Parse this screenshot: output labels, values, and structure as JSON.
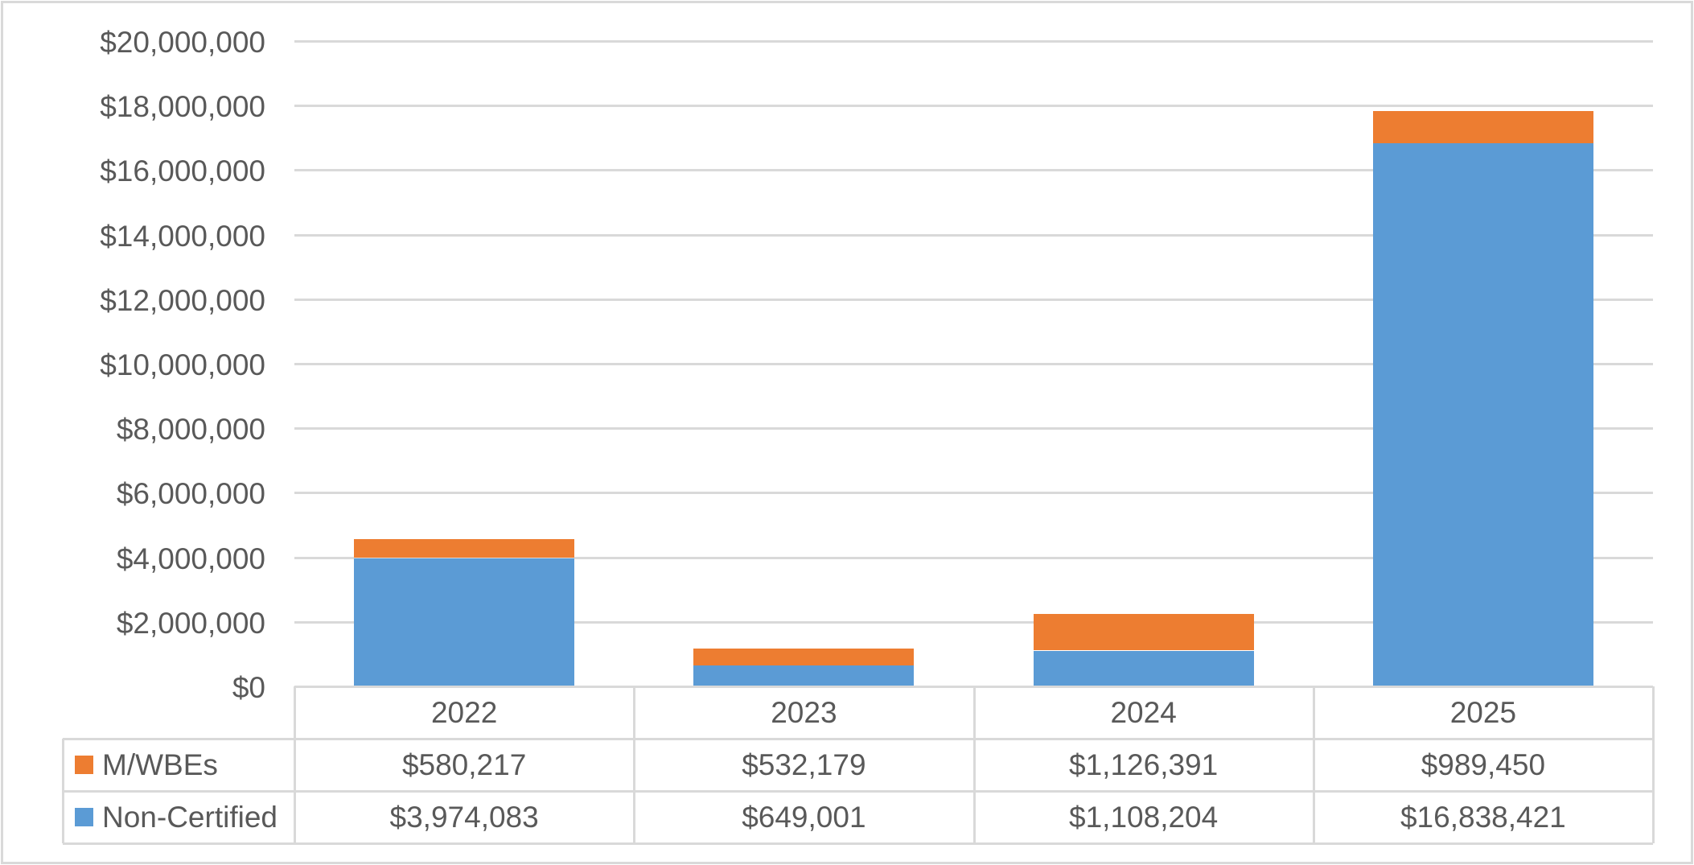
{
  "window": {
    "background": "#ffffff",
    "border_color": "#d9d9d9"
  },
  "colors": {
    "text": "#595959",
    "gridline": "#d9d9d9",
    "table_border": "#d9d9d9",
    "mwbes": "#ED7D31",
    "non_certified": "#5B9BD5"
  },
  "chart_data": {
    "type": "bar",
    "stacked": true,
    "title": "",
    "xlabel": "",
    "ylabel": "",
    "categories": [
      "2022",
      "2023",
      "2024",
      "2025"
    ],
    "series": [
      {
        "name": "M/WBEs",
        "color": "#ED7D31",
        "values": [
          580217,
          532179,
          1126391,
          989450
        ],
        "labels": [
          "$580,217",
          "$532,179",
          "$1,126,391",
          "$989,450"
        ]
      },
      {
        "name": "Non-Certified",
        "color": "#5B9BD5",
        "values": [
          3974083,
          649001,
          1108204,
          16838421
        ],
        "labels": [
          "$3,974,083",
          "$649,001",
          "$1,108,204",
          "$16,838,421"
        ]
      }
    ],
    "stack_order_bottom_to_top": [
      "Non-Certified",
      "M/WBEs"
    ],
    "y_axis": {
      "min": 0,
      "max": 20000000,
      "step": 2000000,
      "tick_labels": [
        "$0",
        "$2,000,000",
        "$4,000,000",
        "$6,000,000",
        "$8,000,000",
        "$10,000,000",
        "$12,000,000",
        "$14,000,000",
        "$16,000,000",
        "$18,000,000",
        "$20,000,000"
      ]
    },
    "gridlines": true,
    "legend_position": "data-table-keys"
  }
}
